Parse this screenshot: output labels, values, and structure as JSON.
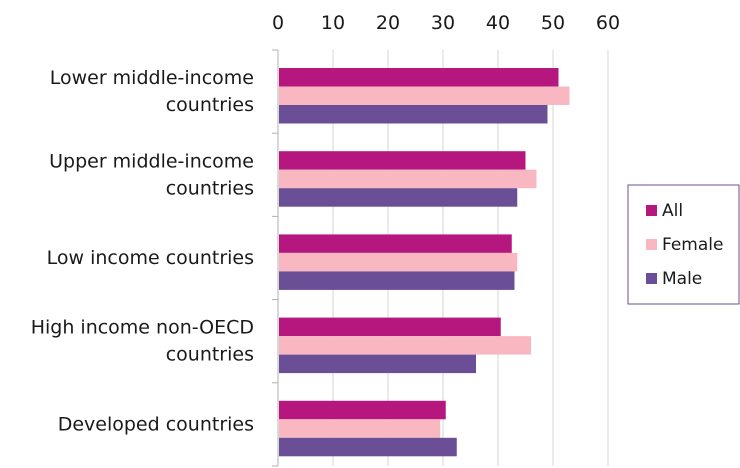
{
  "chart_data": {
    "type": "bar",
    "orientation": "horizontal",
    "categories": [
      [
        "Lower middle-income",
        "countries"
      ],
      [
        "Upper middle-income",
        "countries"
      ],
      [
        "Low income countries"
      ],
      [
        "High income non-OECD",
        "countries"
      ],
      [
        "Developed countries"
      ]
    ],
    "series": [
      {
        "name": "All",
        "color": "#b5177f",
        "values": [
          51,
          45,
          42.5,
          40.5,
          30.5
        ]
      },
      {
        "name": "Female",
        "color": "#f9b8c1",
        "values": [
          53,
          47,
          43.5,
          46,
          29.5
        ]
      },
      {
        "name": "Male",
        "color": "#6a4f96",
        "values": [
          49,
          43.5,
          43,
          36,
          32.5
        ]
      }
    ],
    "x_ticks": [
      "0",
      "10",
      "20",
      "30",
      "40",
      "50",
      "60"
    ],
    "xlim": [
      0,
      60
    ],
    "xaxis_position": "top",
    "grid": true,
    "legend_position": "right"
  }
}
